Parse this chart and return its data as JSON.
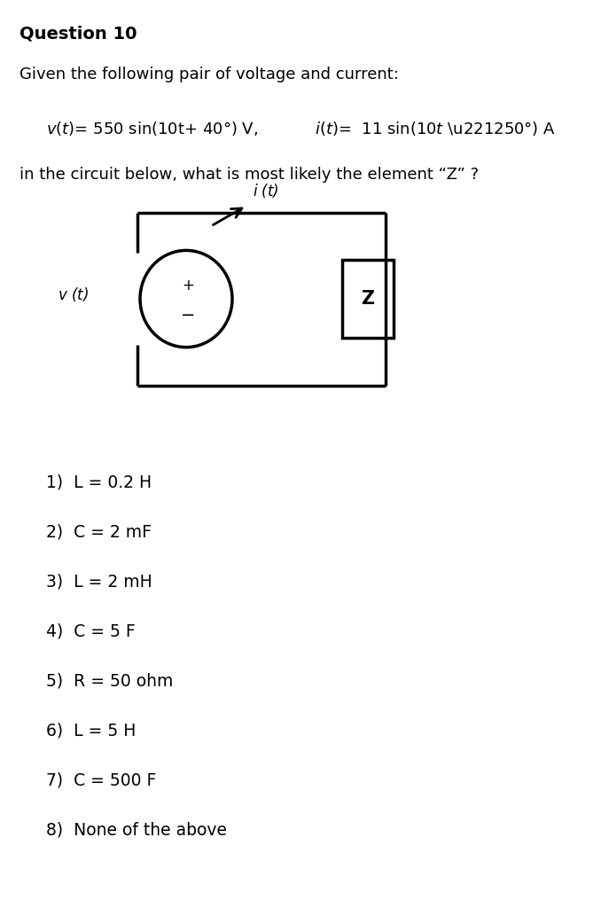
{
  "bg_color": "#ffffff",
  "title": "Question 10",
  "intro_line": "Given the following pair of voltage and current:",
  "circuit_question": "in the circuit below, what is most likely the element “Z” ?",
  "options": [
    "1)  L = 0.2 H",
    "2)  C = 2 mF",
    "3)  L = 2 mH",
    "4)  C = 5 F",
    "5)  R = 50 ohm",
    "6)  L = 5 H",
    "7)  C = 500 F",
    "8)  None of the above"
  ],
  "font_size_title": 14,
  "font_size_body": 13,
  "font_size_eq": 13,
  "font_size_options": 13.5
}
